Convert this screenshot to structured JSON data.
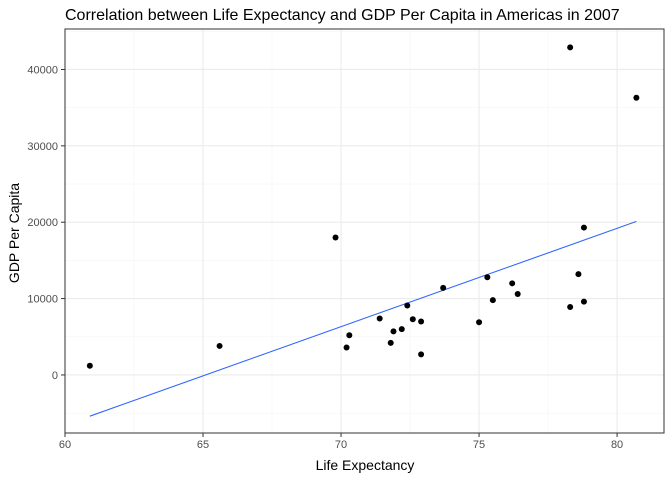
{
  "chart_data": {
    "type": "scatter",
    "title": "Correlation between Life Expectancy and GDP Per Capita in Americas in 2007",
    "xlabel": "Life Expectancy",
    "ylabel": "GDP Per Capita",
    "xlim": [
      60,
      81.7
    ],
    "ylim": [
      -7600,
      45300
    ],
    "x_ticks": [
      60,
      65,
      70,
      75,
      80
    ],
    "y_ticks": [
      0,
      10000,
      20000,
      30000,
      40000
    ],
    "grid": true,
    "points": {
      "x": [
        60.9,
        65.6,
        69.8,
        70.2,
        70.3,
        71.4,
        71.8,
        71.9,
        72.2,
        72.4,
        72.6,
        72.9,
        72.9,
        73.7,
        75.0,
        75.3,
        75.5,
        76.2,
        76.4,
        78.3,
        78.3,
        78.6,
        78.8,
        78.8,
        80.7
      ],
      "y": [
        1200,
        3800,
        18000,
        3600,
        5200,
        7400,
        4200,
        5700,
        6000,
        9100,
        7300,
        7000,
        2700,
        11400,
        6900,
        12800,
        9800,
        12000,
        10600,
        42900,
        8900,
        13200,
        19300,
        9600,
        36300
      ],
      "color": "#000000"
    },
    "trend_line": {
      "x": [
        60.9,
        80.7
      ],
      "y": [
        -5400,
        20100
      ],
      "color": "#3366ff"
    },
    "panel_background": "#ffffff",
    "panel_border": "#333333",
    "major_grid_color": "#ebebeb",
    "minor_grid_color": "#f5f5f5"
  }
}
